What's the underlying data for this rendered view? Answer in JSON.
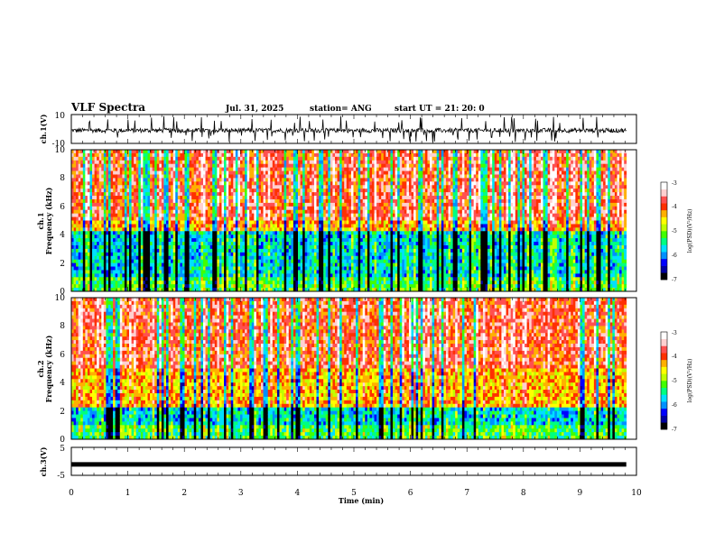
{
  "header": {
    "title": "VLF Spectra",
    "date": "Jul. 31, 2025",
    "station": "station= ANG",
    "start": "start UT =  21: 20: 0"
  },
  "colorbar": {
    "label": "log(PSD)(V²/Hz)",
    "ticks": [
      "-3",
      "-4",
      "-5",
      "-6",
      "-7"
    ],
    "colors": [
      "#000000",
      "#0000a0",
      "#0000ff",
      "#0090ff",
      "#00e0ff",
      "#00ff80",
      "#40ff00",
      "#c0ff00",
      "#ffff00",
      "#ffb000",
      "#ff3000",
      "#ff5050",
      "#ffd0d0",
      "#ffffff"
    ]
  },
  "chart_data": [
    {
      "type": "line",
      "id": "ch1",
      "ylabel": "ch.1(V)",
      "ylim": [
        -10,
        10
      ],
      "ytick_labels": [
        "10",
        "-10"
      ],
      "description_note": "broadband waveform, noisy around about -1 V with spikes",
      "x_range_min": [
        0,
        9.82
      ]
    },
    {
      "type": "heatmap",
      "id": "ch1-spectrogram",
      "ylabel": "ch.1",
      "ylabel2": "Frequency (kHz)",
      "ylim": [
        0,
        10
      ],
      "ytick_labels": [
        "0",
        "2",
        "4",
        "6",
        "8",
        "10"
      ],
      "zlabel": "log(PSD)(V²/Hz)",
      "zlim": [
        -7,
        -3
      ],
      "x_range_min": [
        0,
        9.82
      ]
    },
    {
      "type": "heatmap",
      "id": "ch2-spectrogram",
      "ylabel": "ch.2",
      "ylabel2": "Frequency (kHz)",
      "ylim": [
        0,
        10
      ],
      "ytick_labels": [
        "0",
        "2",
        "4",
        "6",
        "8",
        "10"
      ],
      "zlabel": "log(PSD)(V²/Hz)",
      "zlim": [
        -7,
        -3
      ],
      "x_range_min": [
        0,
        9.82
      ]
    },
    {
      "type": "line",
      "id": "ch3",
      "ylabel": "ch.3(V)",
      "ylim": [
        -5,
        5
      ],
      "ytick_labels": [
        "5",
        "-5"
      ],
      "x": [
        0,
        9.82
      ],
      "y": [
        -1.1,
        -1.1
      ]
    }
  ],
  "xaxis": {
    "label": "Time (min)",
    "xlim": [
      0,
      10
    ],
    "tick_labels": [
      "0",
      "1",
      "2",
      "3",
      "4",
      "5",
      "6",
      "7",
      "8",
      "9",
      "10"
    ]
  }
}
